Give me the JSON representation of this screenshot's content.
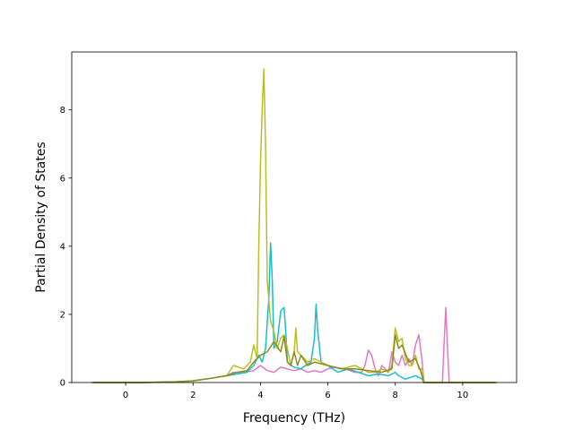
{
  "chart_data": {
    "type": "line",
    "title": "",
    "xlabel": "Frequency (THz)",
    "ylabel": "Partial Density of States",
    "xlim": [
      -1.6,
      11.6
    ],
    "ylim": [
      0,
      9.7
    ],
    "xticks": [
      0,
      2,
      4,
      6,
      8,
      10
    ],
    "yticks": [
      0,
      2,
      4,
      6,
      8
    ],
    "xtick_labels": [
      "0",
      "2",
      "4",
      "6",
      "8",
      "10"
    ],
    "ytick_labels": [
      "0",
      "2",
      "4",
      "6",
      "8"
    ],
    "grid": false,
    "legend": "none",
    "series": [
      {
        "color": "#e377c2",
        "x": [
          -1.0,
          0.5,
          1.5,
          2.0,
          2.5,
          3.0,
          3.2,
          3.5,
          3.8,
          4.0,
          4.2,
          4.4,
          4.6,
          4.8,
          5.0,
          5.2,
          5.4,
          5.6,
          5.8,
          6.0,
          6.2,
          6.5,
          6.8,
          7.0,
          7.1,
          7.2,
          7.3,
          7.4,
          7.5,
          7.6,
          7.8,
          7.9,
          8.0,
          8.1,
          8.2,
          8.3,
          8.4,
          8.5,
          8.6,
          8.7,
          8.8,
          8.85,
          9.0,
          9.4,
          9.45,
          9.5,
          9.55,
          9.6,
          9.65,
          10.0,
          11.0
        ],
        "y": [
          0,
          0,
          0.02,
          0.05,
          0.12,
          0.2,
          0.3,
          0.3,
          0.35,
          0.5,
          0.35,
          0.3,
          0.45,
          0.4,
          0.35,
          0.4,
          0.3,
          0.35,
          0.3,
          0.4,
          0.45,
          0.4,
          0.3,
          0.3,
          0.5,
          0.95,
          0.8,
          0.4,
          0.2,
          0.5,
          0.3,
          0.9,
          0.6,
          0.5,
          0.8,
          0.5,
          0.7,
          0.5,
          1.1,
          1.4,
          0.6,
          0.0,
          0.0,
          0.0,
          1.2,
          2.2,
          1.0,
          0.0,
          0.0,
          0.0,
          0.0
        ]
      },
      {
        "color": "#17becf",
        "x": [
          -1.0,
          0.5,
          1.5,
          2.0,
          2.5,
          3.0,
          3.3,
          3.6,
          3.8,
          3.95,
          4.05,
          4.15,
          4.25,
          4.3,
          4.35,
          4.4,
          4.5,
          4.6,
          4.7,
          4.75,
          4.8,
          4.9,
          5.0,
          5.2,
          5.5,
          5.6,
          5.65,
          5.7,
          5.8,
          6.0,
          6.3,
          6.6,
          6.9,
          7.2,
          7.5,
          7.8,
          8.0,
          8.1,
          8.3,
          8.6,
          8.8,
          8.85,
          9.0,
          11.0
        ],
        "y": [
          0,
          0,
          0.02,
          0.05,
          0.12,
          0.2,
          0.25,
          0.3,
          0.5,
          0.8,
          0.6,
          1.0,
          2.5,
          4.1,
          3.0,
          1.0,
          1.2,
          2.1,
          2.2,
          1.5,
          0.6,
          0.5,
          0.45,
          0.4,
          0.6,
          1.3,
          2.3,
          1.5,
          0.6,
          0.5,
          0.3,
          0.4,
          0.3,
          0.2,
          0.25,
          0.2,
          0.3,
          0.2,
          0.1,
          0.2,
          0.1,
          0.0,
          0.0,
          0.0
        ]
      },
      {
        "color": "#bcbd22",
        "x": [
          -1.0,
          0.5,
          1.5,
          2.0,
          2.5,
          3.0,
          3.2,
          3.5,
          3.7,
          3.8,
          3.9,
          3.95,
          4.0,
          4.05,
          4.1,
          4.15,
          4.2,
          4.3,
          4.4,
          4.5,
          4.6,
          4.7,
          4.8,
          4.9,
          5.0,
          5.05,
          5.1,
          5.2,
          5.4,
          5.6,
          6.0,
          6.4,
          6.8,
          7.0,
          7.2,
          7.4,
          7.6,
          7.8,
          7.9,
          8.0,
          8.1,
          8.2,
          8.3,
          8.4,
          8.5,
          8.6,
          8.7,
          8.8,
          8.85,
          9.0,
          9.5,
          11.0
        ],
        "y": [
          0,
          0,
          0.02,
          0.05,
          0.12,
          0.2,
          0.5,
          0.4,
          0.6,
          1.1,
          0.7,
          4.0,
          6.4,
          8.0,
          9.2,
          7.0,
          3.0,
          1.8,
          1.5,
          1.0,
          1.3,
          1.4,
          1.0,
          0.5,
          0.9,
          1.6,
          0.9,
          0.8,
          0.6,
          0.7,
          0.5,
          0.4,
          0.5,
          0.4,
          0.3,
          0.3,
          0.4,
          0.3,
          0.5,
          1.6,
          1.2,
          1.3,
          0.7,
          0.5,
          0.5,
          0.8,
          0.4,
          0.4,
          0.0,
          0.0,
          0.0,
          0.0
        ]
      },
      {
        "color": "#8c8c1a",
        "x": [
          -1.0,
          0.5,
          1.5,
          2.0,
          2.5,
          3.0,
          3.3,
          3.6,
          3.8,
          4.0,
          4.2,
          4.4,
          4.6,
          4.7,
          4.8,
          4.9,
          5.0,
          5.1,
          5.2,
          5.4,
          5.6,
          6.0,
          6.4,
          6.8,
          7.2,
          7.6,
          7.9,
          8.0,
          8.1,
          8.2,
          8.4,
          8.6,
          8.75,
          8.85,
          9.0,
          11.0
        ],
        "y": [
          0,
          0,
          0.02,
          0.05,
          0.12,
          0.2,
          0.3,
          0.35,
          0.6,
          0.8,
          0.9,
          1.2,
          0.9,
          1.35,
          0.6,
          0.5,
          0.9,
          0.5,
          0.8,
          0.5,
          0.6,
          0.5,
          0.4,
          0.4,
          0.35,
          0.3,
          0.4,
          1.4,
          1.0,
          1.1,
          0.6,
          0.7,
          0.35,
          0.0,
          0.0,
          0.0
        ]
      }
    ]
  }
}
